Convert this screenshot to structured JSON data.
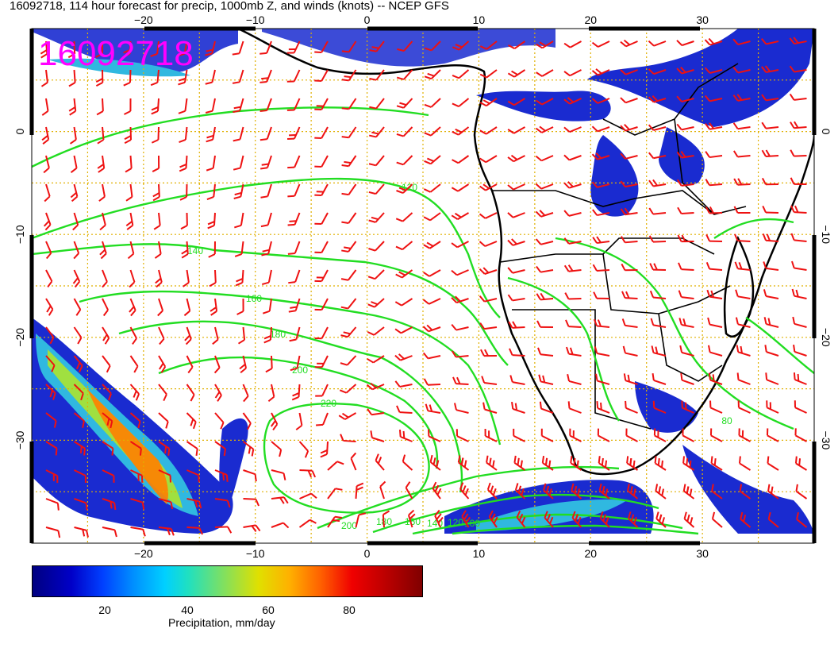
{
  "title": "16092718, 114 hour forecast for precip, 1000mb Z, and winds (knots) -- NCEP GFS",
  "stamp": "16092718",
  "map": {
    "lon_range": [
      -30,
      40
    ],
    "lat_range": [
      -40,
      10
    ],
    "x_ticks": [
      {
        "value": -20,
        "label": "−20"
      },
      {
        "value": -10,
        "label": "−10"
      },
      {
        "value": 0,
        "label": "0"
      },
      {
        "value": 10,
        "label": "10"
      },
      {
        "value": 20,
        "label": "20"
      },
      {
        "value": 30,
        "label": "30"
      }
    ],
    "y_ticks": [
      {
        "value": 0,
        "label": "0"
      },
      {
        "value": -10,
        "label": "−10"
      },
      {
        "value": -20,
        "label": "−20"
      },
      {
        "value": -30,
        "label": "−30"
      }
    ],
    "contour_labels": [
      "120",
      "140",
      "160",
      "180",
      "200",
      "220",
      "200",
      "180",
      "160",
      "140",
      "120",
      "100",
      "80"
    ],
    "colors": {
      "contour": "#22dd22",
      "wind_barb": "#ee1111",
      "grid": "#e0b000",
      "coast": "#000000",
      "stamp": "#ff00ff"
    }
  },
  "colorbar": {
    "label": "Precipitation, mm/day",
    "ticks": [
      "20",
      "40",
      "60",
      "80"
    ],
    "range": [
      0,
      100
    ]
  }
}
